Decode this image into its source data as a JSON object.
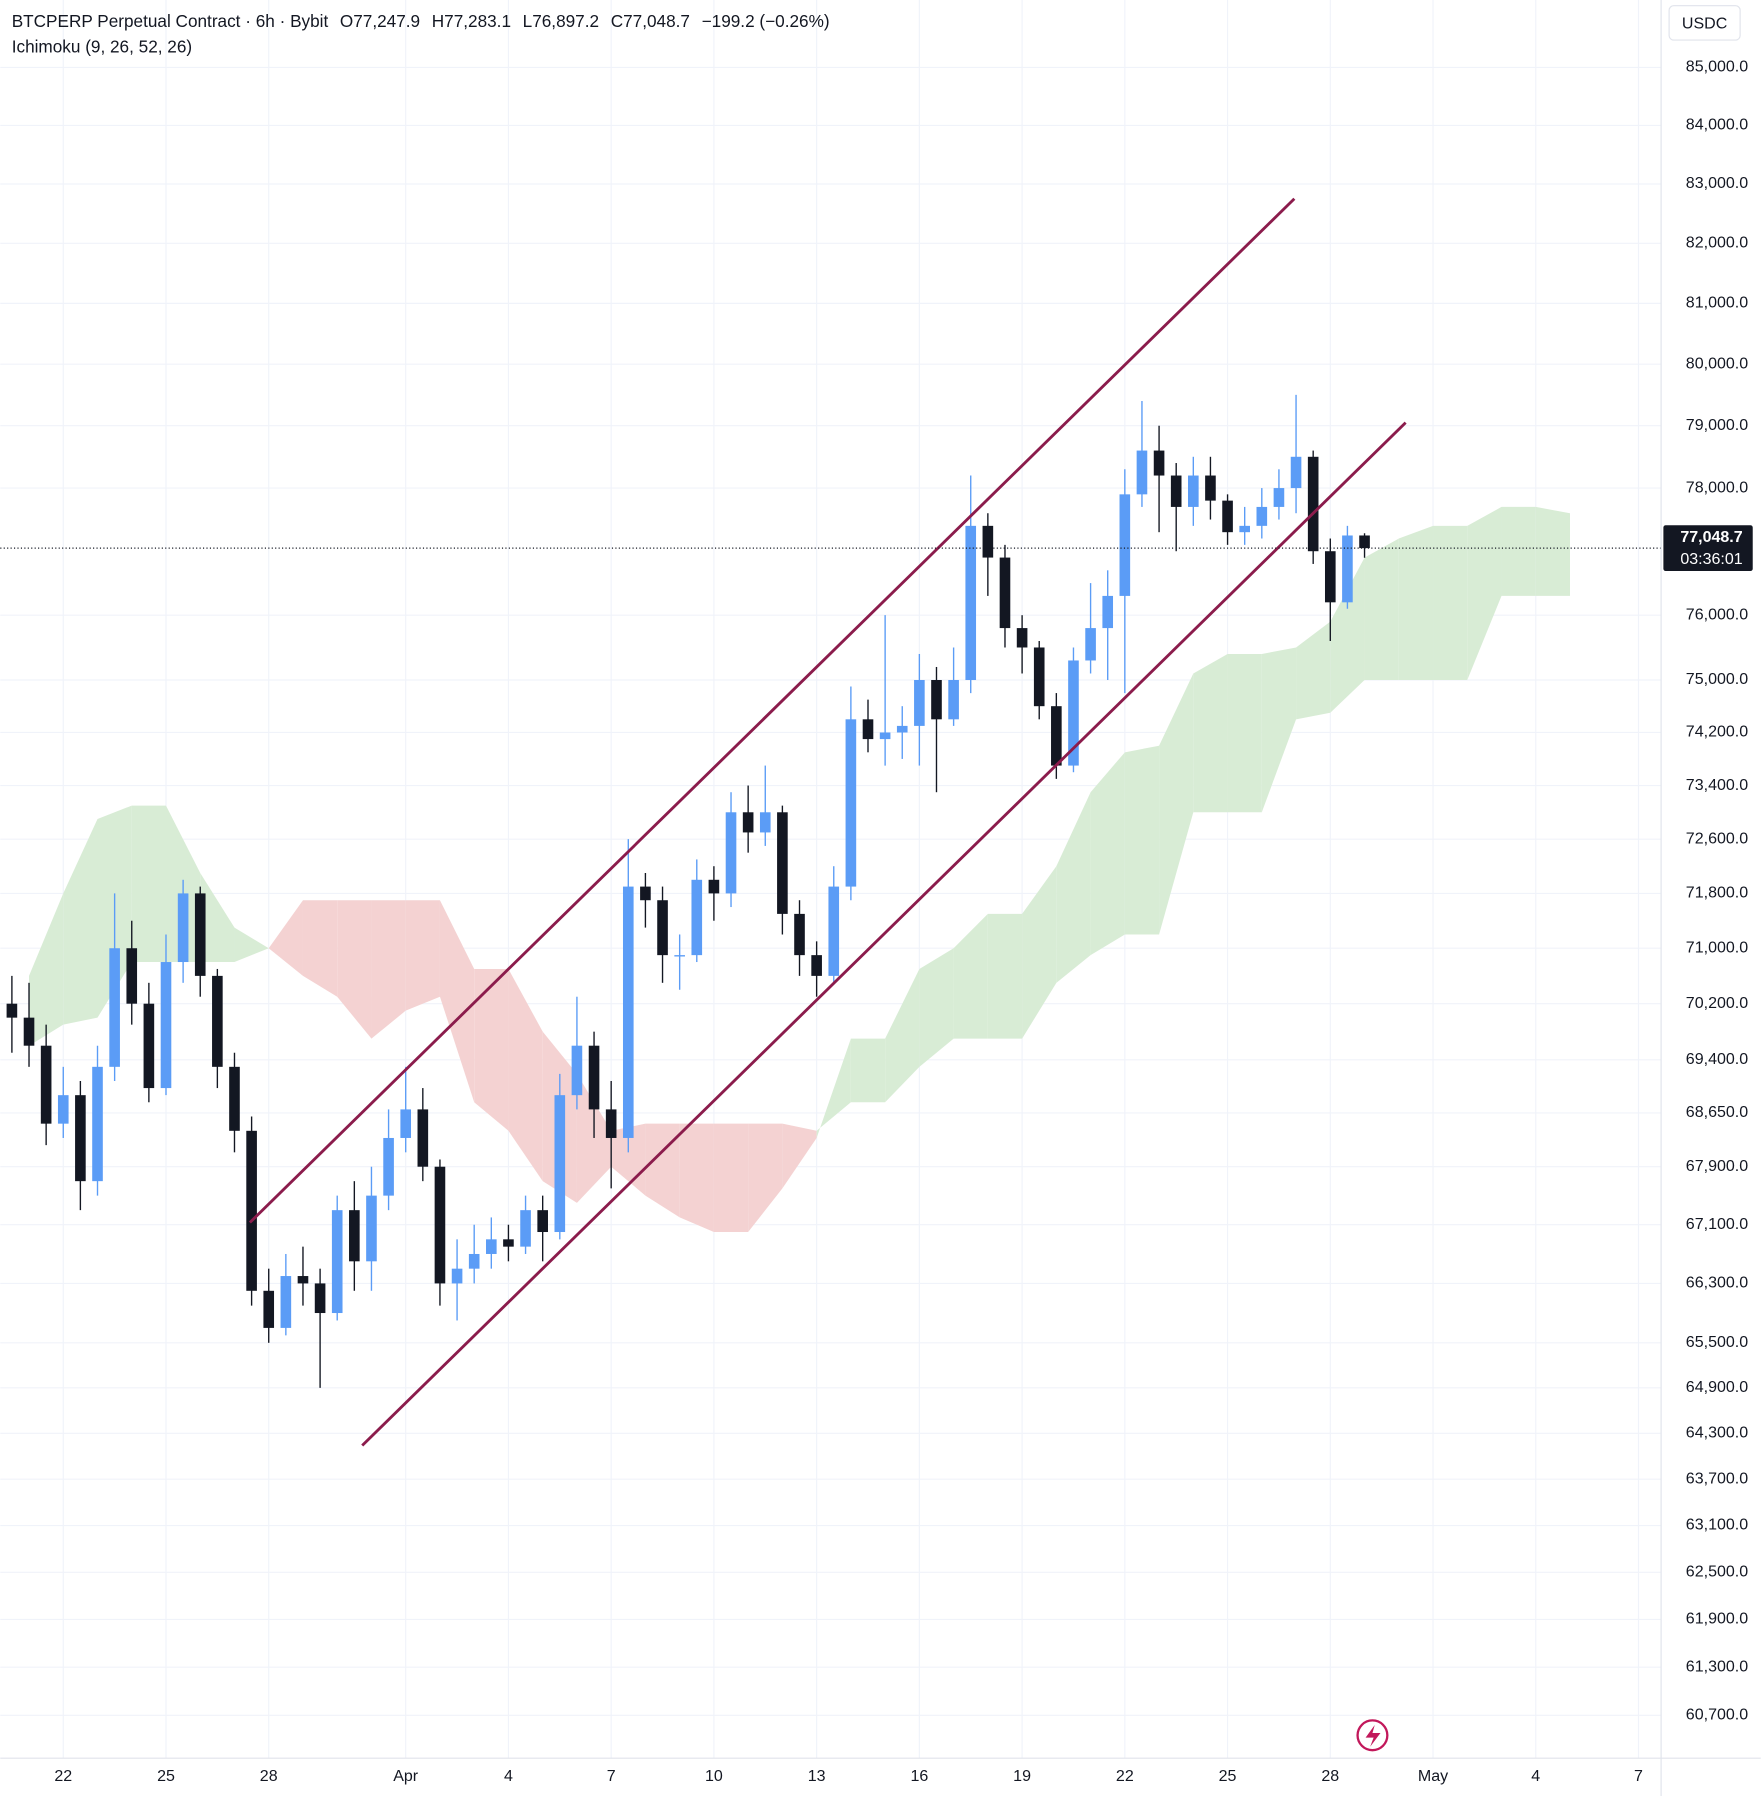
{
  "chart_data": {
    "type": "candlestick",
    "title": "BTCPERP Perpetual Contract · 6h · Bybit",
    "ohlc_labels": [
      "O77,247.9",
      "H77,283.1",
      "L76,897.2",
      "C77,048.7",
      "−199.2 (−0.26%)"
    ],
    "indicator": "Ichimoku (9, 26, 52, 26)",
    "currency": "USDC",
    "x": [
      20.5,
      21,
      21.5,
      22,
      22.5,
      23,
      23.5,
      24,
      24.5,
      25,
      25.5,
      26,
      26.5,
      27,
      27.5,
      28,
      28.5,
      29,
      29.5,
      30,
      30.5,
      31,
      31.5,
      32,
      32.5,
      33,
      33.5,
      34,
      34.5,
      35,
      35.5,
      36,
      36.5,
      37,
      37.5,
      38,
      38.5,
      39,
      39.5,
      40,
      40.5,
      41,
      41.5,
      42,
      42.5,
      43,
      43.5,
      44,
      44.5,
      45,
      45.5,
      46,
      46.5,
      47,
      47.5,
      48,
      48.5,
      49,
      49.5,
      50,
      50.5,
      51,
      51.5,
      52,
      52.5,
      53,
      53.5,
      54,
      54.5,
      55,
      55.5,
      56,
      56.5,
      57,
      57.5,
      58,
      58.5,
      59,
      59.5,
      60
    ],
    "open": [
      70200,
      70000,
      69600,
      68500,
      68900,
      67700,
      69300,
      71000,
      70200,
      69000,
      70800,
      71800,
      70600,
      69300,
      68400,
      66200,
      65700,
      66400,
      66300,
      65900,
      67300,
      66600,
      67500,
      68300,
      68700,
      67900,
      66300,
      66500,
      66700,
      66900,
      66800,
      67300,
      67000,
      68900,
      69600,
      68700,
      68300,
      71900,
      71700,
      70900,
      70900,
      72000,
      71800,
      73000,
      72700,
      73000,
      71500,
      70900,
      70600,
      71900,
      74400,
      74100,
      74200,
      74300,
      75000,
      74400,
      75000,
      77400,
      76900,
      75800,
      75500,
      74600,
      73700,
      75300,
      75800,
      76300,
      77900,
      78600,
      78200,
      77700,
      78200,
      77800,
      77300,
      77400,
      77700,
      78000,
      78500,
      77000,
      76200,
      77247.9
    ],
    "high": [
      70600,
      70500,
      69900,
      69300,
      69100,
      69600,
      71800,
      71400,
      70500,
      71200,
      72000,
      71900,
      70700,
      69500,
      68600,
      66500,
      66700,
      66800,
      66500,
      67500,
      67700,
      67900,
      68700,
      69300,
      69000,
      68000,
      66900,
      67100,
      67200,
      67100,
      67500,
      67500,
      69200,
      70300,
      69800,
      69100,
      72600,
      72100,
      71900,
      71200,
      72300,
      72200,
      73300,
      73400,
      73700,
      73100,
      71700,
      71100,
      72200,
      74900,
      74700,
      76000,
      74600,
      75400,
      75200,
      75500,
      78200,
      77600,
      77100,
      76000,
      75600,
      74800,
      75500,
      76500,
      76700,
      78300,
      79400,
      79000,
      78400,
      78500,
      78500,
      77900,
      77700,
      78000,
      78300,
      79500,
      78600,
      77200,
      77400,
      77283.1
    ],
    "low": [
      69500,
      69300,
      68200,
      68300,
      67300,
      67500,
      69100,
      69900,
      68800,
      68900,
      70500,
      70300,
      69000,
      68100,
      66000,
      65500,
      65600,
      66000,
      64900,
      65800,
      66200,
      66200,
      67300,
      68100,
      67700,
      66000,
      65800,
      66300,
      66500,
      66600,
      66700,
      66600,
      66900,
      68700,
      68300,
      67600,
      68100,
      71300,
      70500,
      70400,
      70800,
      71400,
      71600,
      72400,
      72500,
      71200,
      70600,
      70300,
      70500,
      71700,
      73900,
      73700,
      73800,
      73700,
      73300,
      74300,
      74800,
      76300,
      75500,
      75100,
      74400,
      73500,
      73600,
      75100,
      75000,
      74800,
      77700,
      77300,
      77000,
      77400,
      77500,
      77100,
      77100,
      77200,
      77500,
      77600,
      76800,
      75600,
      76100,
      76897.2
    ],
    "close": [
      70000,
      69600,
      68500,
      68900,
      67700,
      69300,
      71000,
      70200,
      69000,
      70800,
      71800,
      70600,
      69300,
      68400,
      66200,
      65700,
      66400,
      66300,
      65900,
      67300,
      66600,
      67500,
      68300,
      68700,
      67900,
      66300,
      66500,
      66700,
      66900,
      66800,
      67300,
      67000,
      68900,
      69600,
      68700,
      68300,
      71900,
      71700,
      70900,
      70900,
      72000,
      71800,
      73000,
      72700,
      73000,
      71500,
      70900,
      70600,
      71900,
      74400,
      74100,
      74200,
      74300,
      75000,
      74400,
      75000,
      77400,
      76900,
      75800,
      75500,
      74600,
      73700,
      75300,
      75800,
      76300,
      77900,
      78600,
      78200,
      77700,
      78200,
      77800,
      77300,
      77400,
      77700,
      78000,
      78500,
      77000,
      76200,
      77247.9,
      77048.7
    ],
    "up_color": "#5b9cf6",
    "down_color": "#131722",
    "cloud": {
      "x": [
        21,
        22,
        23,
        24,
        25,
        26,
        27,
        28,
        29,
        30,
        31,
        32,
        33,
        34,
        35,
        36,
        37,
        38,
        39,
        40,
        41,
        42,
        43,
        44,
        45,
        46,
        47,
        48,
        49,
        50,
        51,
        52,
        53,
        54,
        55,
        56,
        57,
        58,
        59,
        60,
        61,
        62,
        63,
        64,
        65,
        66
      ],
      "span_a": [
        70600,
        71800,
        72900,
        73100,
        73100,
        72100,
        71300,
        71000,
        70600,
        70300,
        69700,
        70100,
        70300,
        68800,
        68400,
        67700,
        67400,
        67900,
        67500,
        67200,
        67000,
        67000,
        67600,
        68300,
        69700,
        69700,
        70700,
        71000,
        71500,
        71500,
        72200,
        73300,
        73900,
        74000,
        75100,
        75400,
        75400,
        75500,
        75900,
        76900,
        77200,
        77400,
        77400,
        77700,
        77700,
        77600
      ],
      "span_b": [
        69600,
        69900,
        70000,
        70800,
        70800,
        70800,
        70800,
        71000,
        71700,
        71700,
        71700,
        71700,
        71700,
        70700,
        70700,
        69800,
        69200,
        68400,
        68500,
        68500,
        68500,
        68500,
        68500,
        68400,
        68800,
        68800,
        69300,
        69700,
        69700,
        69700,
        70500,
        70900,
        71200,
        71200,
        73000,
        73000,
        73000,
        74400,
        74500,
        75000,
        75000,
        75000,
        75000,
        76300,
        76300,
        76300
      ],
      "up_color": "#d8ecd5",
      "down_color": "#f4d2d2"
    },
    "trendlines": [
      {
        "x": [
          27.45,
          57.95
        ],
        "y": [
          67130,
          82750
        ]
      },
      {
        "x": [
          30.73,
          61.2
        ],
        "y": [
          64140,
          79050
        ]
      }
    ],
    "trendline_color": "#8b1c4c",
    "last_price": 77048.7,
    "last_price_label": "77,048.7",
    "countdown": "03:36:01",
    "xlim": [
      20.16,
      68.66
    ],
    "ylim": [
      60170,
      86180
    ],
    "log_scale": true,
    "grid": true,
    "xticks": [
      22,
      25,
      28,
      {
        "value": 32,
        "label": "Apr"
      },
      {
        "value": 35,
        "label": "4"
      },
      {
        "value": 38,
        "label": "7"
      },
      {
        "value": 41,
        "label": "10"
      },
      {
        "value": 44,
        "label": "13"
      },
      {
        "value": 47,
        "label": "16"
      },
      {
        "value": 50,
        "label": "19"
      },
      {
        "value": 53,
        "label": "22"
      },
      {
        "value": 56,
        "label": "25"
      },
      {
        "value": 59,
        "label": "28"
      },
      {
        "value": 62,
        "label": "May"
      },
      {
        "value": 65,
        "label": "4"
      },
      {
        "value": 68,
        "label": "7"
      }
    ],
    "yticks": [
      {
        "value": 85000,
        "label": "85,000.0"
      },
      {
        "value": 84000,
        "label": "84,000.0"
      },
      {
        "value": 83000,
        "label": "83,000.0"
      },
      {
        "value": 82000,
        "label": "82,000.0"
      },
      {
        "value": 81000,
        "label": "81,000.0"
      },
      {
        "value": 80000,
        "label": "80,000.0"
      },
      {
        "value": 79000,
        "label": "79,000.0"
      },
      {
        "value": 78000,
        "label": "78,000.0"
      },
      {
        "value": 76000,
        "label": "76,000.0"
      },
      {
        "value": 75000,
        "label": "75,000.0"
      },
      {
        "value": 74200,
        "label": "74,200.0"
      },
      {
        "value": 73400,
        "label": "73,400.0"
      },
      {
        "value": 72600,
        "label": "72,600.0"
      },
      {
        "value": 71800,
        "label": "71,800.0"
      },
      {
        "value": 71000,
        "label": "71,000.0"
      },
      {
        "value": 70200,
        "label": "70,200.0"
      },
      {
        "value": 69400,
        "label": "69,400.0"
      },
      {
        "value": 68650,
        "label": "68,650.0"
      },
      {
        "value": 67900,
        "label": "67,900.0"
      },
      {
        "value": 67100,
        "label": "67,100.0"
      },
      {
        "value": 66300,
        "label": "66,300.0"
      },
      {
        "value": 65500,
        "label": "65,500.0"
      },
      {
        "value": 64900,
        "label": "64,900.0"
      },
      {
        "value": 64300,
        "label": "64,300.0"
      },
      {
        "value": 63700,
        "label": "63,700.0"
      },
      {
        "value": 63100,
        "label": "63,100.0"
      },
      {
        "value": 62500,
        "label": "62,500.0"
      },
      {
        "value": 61900,
        "label": "61,900.0"
      },
      {
        "value": 61300,
        "label": "61,300.0"
      },
      {
        "value": 60700,
        "label": "60,700.0"
      }
    ]
  }
}
